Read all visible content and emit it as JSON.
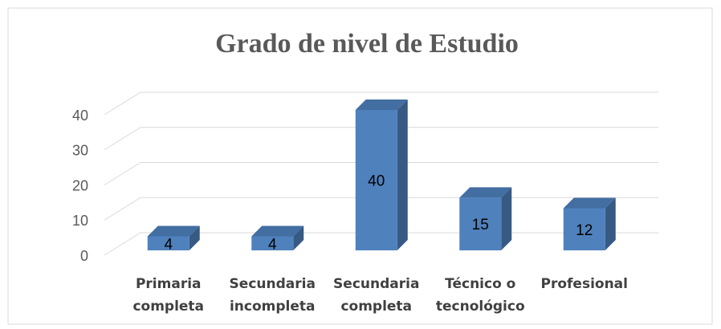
{
  "chart_data": {
    "type": "bar3d",
    "title": "Grado de nivel de Estudio",
    "categories": [
      "Primaria completa",
      "Secundaria incompleta",
      "Secundaria completa",
      "Técnico o tecnológico",
      "Profesional"
    ],
    "values": [
      4,
      4,
      40,
      15,
      12
    ],
    "color": "#4f81bd",
    "ylim": [
      0,
      40
    ],
    "yticks": [
      0,
      10,
      20,
      30,
      40
    ],
    "grid": true
  }
}
